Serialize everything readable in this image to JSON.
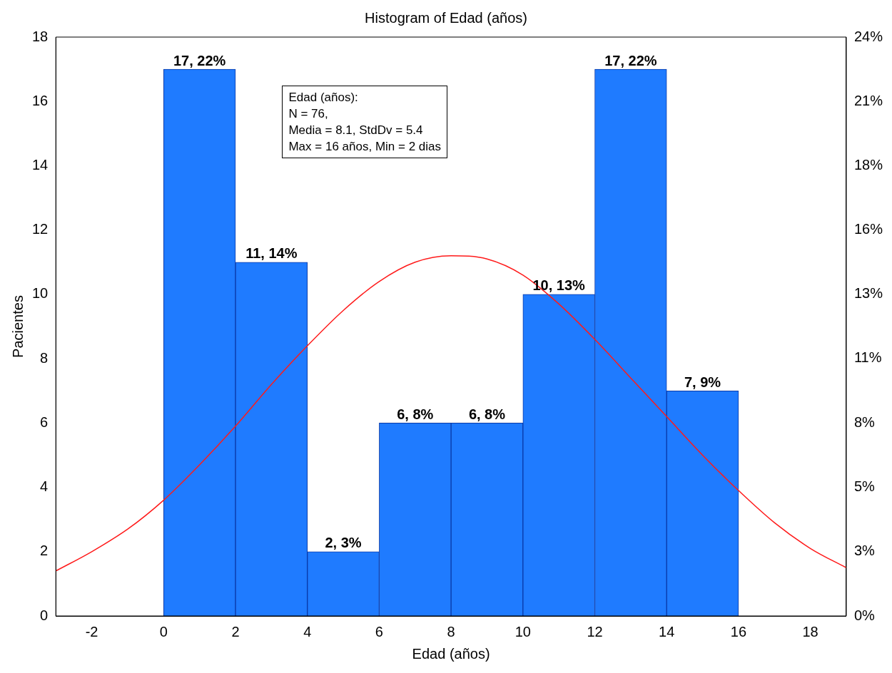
{
  "chart_data": {
    "type": "histogram",
    "title": "Histogram of Edad (años)",
    "xlabel": "Edad (años)",
    "ylabel": "Pacientes",
    "bins": [
      0,
      2,
      4,
      6,
      8,
      10,
      12,
      14,
      16
    ],
    "values": [
      17,
      11,
      2,
      6,
      6,
      10,
      17,
      7
    ],
    "color": "#1f7bff",
    "value_labels": [
      "17, 22%",
      "11, 14%",
      "2, 3%",
      "6, 8%",
      "6, 8%",
      "10, 13%",
      "17, 22%",
      "7, 9%"
    ],
    "series": [
      {
        "type": "line",
        "color": "#ff1a1a",
        "x": [
          -3,
          -2,
          -1,
          0,
          1,
          2,
          3,
          4,
          5,
          6,
          7,
          8,
          9,
          10,
          11,
          12,
          13,
          14,
          15,
          16,
          17,
          18,
          19
        ],
        "values": [
          1.4,
          2.0,
          2.7,
          3.6,
          4.7,
          5.9,
          7.2,
          8.4,
          9.5,
          10.4,
          11.0,
          11.2,
          11.1,
          10.6,
          9.7,
          8.6,
          7.4,
          6.2,
          5.0,
          3.9,
          2.9,
          2.1,
          1.5
        ]
      }
    ],
    "xlim": [
      -3,
      19
    ],
    "xticks": [
      -2,
      0,
      2,
      4,
      6,
      8,
      10,
      12,
      14,
      16,
      18
    ],
    "ylim": [
      0,
      18
    ],
    "yticks": [
      0,
      2,
      4,
      6,
      8,
      10,
      12,
      14,
      16,
      18
    ],
    "y2lim": [
      0,
      23.68
    ],
    "y2ticks": [
      {
        "value": 0,
        "label": "0%"
      },
      {
        "value": 2.63,
        "label": "3%"
      },
      {
        "value": 5.26,
        "label": "5%"
      },
      {
        "value": 7.89,
        "label": "8%"
      },
      {
        "value": 10.53,
        "label": "11%"
      },
      {
        "value": 13.16,
        "label": "13%"
      },
      {
        "value": 15.79,
        "label": "16%"
      },
      {
        "value": 18.42,
        "label": "18%"
      },
      {
        "value": 21.05,
        "label": "21%"
      },
      {
        "value": 23.68,
        "label": "24%"
      }
    ],
    "annotations": [
      "Edad (años):",
      "N = 76,",
      "Media = 8.1, StdDv = 5.4",
      "Max = 16 años, Min = 2 dias"
    ],
    "grid": false,
    "legend": false,
    "marker": "none",
    "line_style": "solid"
  }
}
